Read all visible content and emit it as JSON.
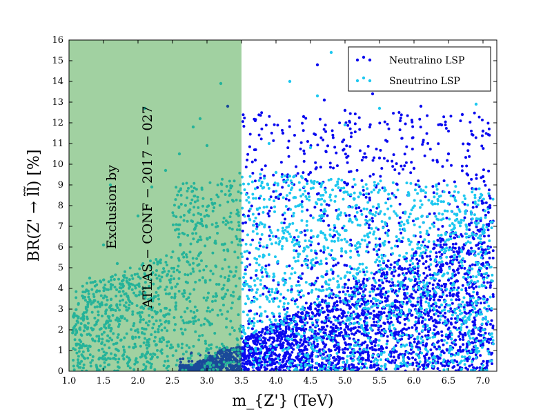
{
  "chart_data": {
    "type": "scatter",
    "title": "",
    "xlabel": "m_{Z'} (TeV)",
    "ylabel": "BR(Z' → l̃l̃) [%]",
    "xlim": [
      1.0,
      7.2
    ],
    "ylim": [
      0,
      16
    ],
    "xticks": [
      1.0,
      1.5,
      2.0,
      2.5,
      3.0,
      3.5,
      4.0,
      4.5,
      5.0,
      5.5,
      6.0,
      6.5,
      7.0
    ],
    "xtick_labels": [
      "1.0",
      "1.5",
      "2.0",
      "2.5",
      "3.0",
      "3.5",
      "4.0",
      "4.5",
      "5.0",
      "5.5",
      "6.0",
      "6.5",
      "7.0"
    ],
    "yticks": [
      0,
      1,
      2,
      3,
      4,
      5,
      6,
      7,
      8,
      9,
      10,
      11,
      12,
      13,
      14,
      15,
      16
    ],
    "ytick_labels": [
      "0",
      "1",
      "2",
      "3",
      "4",
      "5",
      "6",
      "7",
      "8",
      "9",
      "10",
      "11",
      "12",
      "13",
      "14",
      "15",
      "16"
    ],
    "grid": false,
    "legend_position": "top-right",
    "series": [
      {
        "name": "Neutralino LSP",
        "color": "#0a0af0",
        "description_points": [
          [
            3.6,
            0.5
          ],
          [
            3.8,
            1.2
          ],
          [
            4.0,
            2.1
          ],
          [
            4.2,
            0.8
          ],
          [
            4.5,
            3.0
          ],
          [
            4.8,
            1.5
          ],
          [
            5.0,
            4.2
          ],
          [
            5.3,
            2.6
          ],
          [
            5.6,
            5.1
          ],
          [
            5.9,
            3.3
          ],
          [
            6.2,
            6.0
          ],
          [
            6.5,
            4.4
          ],
          [
            6.8,
            7.1
          ],
          [
            7.0,
            5.2
          ],
          [
            7.1,
            8.0
          ],
          [
            3.7,
            10.2
          ],
          [
            4.1,
            11.5
          ],
          [
            4.4,
            12.3
          ],
          [
            4.7,
            13.1
          ],
          [
            5.0,
            12.6
          ],
          [
            5.4,
            13.4
          ],
          [
            5.8,
            12.1
          ],
          [
            6.1,
            12.8
          ],
          [
            6.4,
            11.9
          ],
          [
            6.7,
            12.4
          ],
          [
            7.0,
            11.6
          ],
          [
            4.6,
            14.8
          ],
          [
            5.2,
            14.2
          ],
          [
            6.0,
            13.6
          ],
          [
            3.6,
            7.5
          ],
          [
            4.0,
            8.4
          ],
          [
            4.5,
            9.6
          ],
          [
            5.0,
            9.1
          ],
          [
            5.5,
            10.3
          ],
          [
            6.0,
            9.8
          ],
          [
            6.5,
            10.5
          ],
          [
            7.0,
            9.4
          ],
          [
            6.9,
            8.8
          ],
          [
            7.1,
            7.9
          ],
          [
            3.3,
            12.8
          ],
          [
            3.2,
            0.4
          ],
          [
            3.0,
            0.2
          ],
          [
            2.8,
            0.1
          ]
        ]
      },
      {
        "name": "Sneutrino LSP",
        "color": "#1ec8f0",
        "description_points": [
          [
            3.6,
            3.5
          ],
          [
            3.8,
            5.0
          ],
          [
            4.0,
            6.2
          ],
          [
            4.2,
            7.1
          ],
          [
            4.4,
            5.8
          ],
          [
            4.6,
            6.5
          ],
          [
            4.8,
            4.9
          ],
          [
            5.0,
            6.8
          ],
          [
            5.2,
            5.6
          ],
          [
            5.5,
            4.8
          ],
          [
            5.8,
            4.1
          ],
          [
            6.1,
            3.7
          ],
          [
            6.4,
            3.2
          ],
          [
            6.8,
            2.5
          ],
          [
            7.0,
            2.0
          ],
          [
            4.0,
            9.6
          ],
          [
            4.5,
            10.8
          ],
          [
            5.0,
            11.9
          ],
          [
            5.5,
            12.7
          ],
          [
            4.2,
            14.0
          ],
          [
            4.8,
            15.4
          ],
          [
            6.4,
            13.8
          ],
          [
            3.9,
            11.0
          ],
          [
            4.6,
            13.3
          ],
          [
            6.9,
            12.9
          ],
          [
            1.1,
            2.0
          ],
          [
            1.3,
            4.5
          ],
          [
            1.5,
            6.1
          ],
          [
            1.7,
            5.2
          ],
          [
            2.0,
            7.5
          ],
          [
            2.2,
            8.9
          ],
          [
            2.4,
            9.7
          ],
          [
            2.6,
            10.5
          ],
          [
            2.8,
            11.8
          ],
          [
            3.0,
            10.9
          ],
          [
            3.2,
            13.9
          ],
          [
            2.9,
            12.2
          ],
          [
            1.6,
            9.0
          ],
          [
            2.1,
            12.7
          ]
        ]
      }
    ],
    "exclusion_region": {
      "x_range": [
        1.0,
        3.5
      ],
      "color": "#2e9a2e",
      "opacity": 0.45,
      "annotation": [
        "Exclusion by",
        "ATLAS − CONF − 2017 − 027"
      ]
    }
  }
}
